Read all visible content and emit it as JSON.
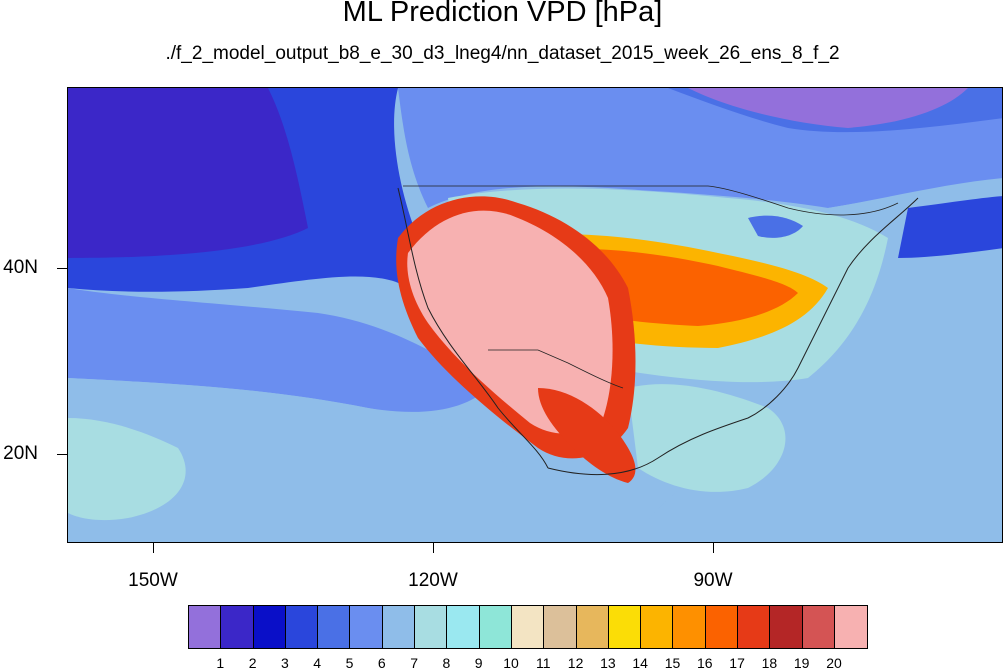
{
  "header": {
    "title": "ML Prediction VPD [hPa]",
    "subtitle": "./f_2_model_output_b8_e_30_d3_lneg4/nn_dataset_2015_week_26_ens_8_f_2"
  },
  "map": {
    "variable": "VPD",
    "units": "hPa",
    "projection": "cylindrical-equidistant",
    "lon_labels": [
      "150W",
      "120W",
      "90W"
    ],
    "lat_labels": [
      "40N",
      "20N"
    ]
  },
  "colorbar": {
    "labels": [
      "1",
      "2",
      "3",
      "4",
      "5",
      "6",
      "7",
      "8",
      "9",
      "10",
      "11",
      "12",
      "13",
      "14",
      "15",
      "16",
      "17",
      "18",
      "19",
      "20"
    ],
    "colors": [
      "#9370db",
      "#3b27c8",
      "#0a0fc8",
      "#2a46dc",
      "#4a70e6",
      "#6a8ef0",
      "#8fbde9",
      "#a8dde2",
      "#9ae8f0",
      "#8ee6d8",
      "#f3e4c3",
      "#dcc09a",
      "#e7b75c",
      "#fbdd06",
      "#fcb400",
      "#fe9000",
      "#fb6200",
      "#e63a17",
      "#b42626",
      "#d45454",
      "#f7b1b1"
    ]
  }
}
